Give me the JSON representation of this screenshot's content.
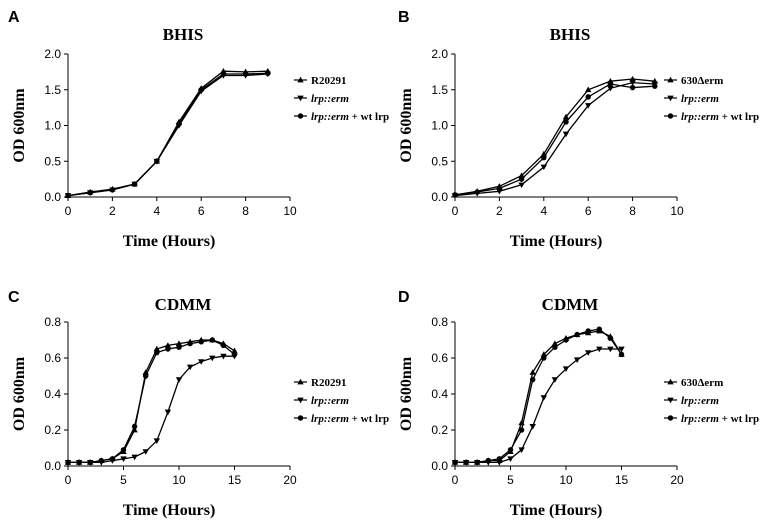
{
  "chart_data": [
    {
      "panel": "A",
      "type": "line",
      "title": "BHIS",
      "xlabel": "Time (Hours)",
      "ylabel": "OD 600nm",
      "xlim": [
        0,
        10
      ],
      "ylim": [
        0,
        2.0
      ],
      "xticks": [
        0,
        2,
        4,
        6,
        8,
        10
      ],
      "yticks": [
        0.0,
        0.5,
        1.0,
        1.5,
        2.0
      ],
      "ytick_labels": [
        "0.0",
        "0.5",
        "1.0",
        "1.5",
        "2.0"
      ],
      "legend_position": "right",
      "series": [
        {
          "name": "R20291",
          "name_italic": "",
          "suffix": "",
          "marker": "triangle-up",
          "x": [
            0,
            1,
            2,
            3,
            4,
            5,
            6,
            7,
            8,
            9
          ],
          "values": [
            0.02,
            0.07,
            0.11,
            0.18,
            0.5,
            1.05,
            1.52,
            1.76,
            1.75,
            1.76
          ]
        },
        {
          "name": "",
          "name_italic": "lrp::erm",
          "suffix": "",
          "marker": "triangle-down",
          "x": [
            0,
            1,
            2,
            3,
            4,
            5,
            6,
            7,
            8,
            9
          ],
          "values": [
            0.02,
            0.06,
            0.1,
            0.18,
            0.5,
            1.0,
            1.48,
            1.7,
            1.7,
            1.72
          ]
        },
        {
          "name": "",
          "name_italic": "lrp::erm",
          "suffix": " + wt lrp",
          "marker": "circle",
          "x": [
            0,
            1,
            2,
            3,
            4,
            5,
            6,
            7,
            8,
            9
          ],
          "values": [
            0.02,
            0.06,
            0.1,
            0.18,
            0.5,
            1.02,
            1.5,
            1.72,
            1.72,
            1.73
          ]
        }
      ]
    },
    {
      "panel": "B",
      "type": "line",
      "title": "BHIS",
      "xlabel": "Time (Hours)",
      "ylabel": "OD 600nm",
      "xlim": [
        0,
        10
      ],
      "ylim": [
        0,
        2.0
      ],
      "xticks": [
        0,
        2,
        4,
        6,
        8,
        10
      ],
      "yticks": [
        0.0,
        0.5,
        1.0,
        1.5,
        2.0
      ],
      "ytick_labels": [
        "0.0",
        "0.5",
        "1.0",
        "1.5",
        "2.0"
      ],
      "legend_position": "right",
      "series": [
        {
          "name": "630Δerm",
          "name_italic": "",
          "suffix": "",
          "marker": "triangle-up",
          "x": [
            0,
            1,
            2,
            3,
            4,
            5,
            6,
            7,
            8,
            9
          ],
          "values": [
            0.03,
            0.08,
            0.15,
            0.3,
            0.6,
            1.12,
            1.5,
            1.62,
            1.65,
            1.62
          ]
        },
        {
          "name": "",
          "name_italic": "lrp::erm",
          "suffix": "",
          "marker": "triangle-down",
          "x": [
            0,
            1,
            2,
            3,
            4,
            5,
            6,
            7,
            8,
            9
          ],
          "values": [
            0.02,
            0.05,
            0.08,
            0.17,
            0.42,
            0.88,
            1.28,
            1.52,
            1.6,
            1.58
          ]
        },
        {
          "name": "",
          "name_italic": "lrp::erm",
          "suffix": " + wt lrp",
          "marker": "circle",
          "x": [
            0,
            1,
            2,
            3,
            4,
            5,
            6,
            7,
            8,
            9
          ],
          "values": [
            0.03,
            0.07,
            0.12,
            0.25,
            0.55,
            1.05,
            1.4,
            1.58,
            1.53,
            1.55
          ]
        }
      ]
    },
    {
      "panel": "C",
      "type": "line",
      "title": "CDMM",
      "xlabel": "Time (Hours)",
      "ylabel": "OD 600nm",
      "xlim": [
        0,
        20
      ],
      "ylim": [
        0,
        0.8
      ],
      "xticks": [
        0,
        5,
        10,
        15,
        20
      ],
      "yticks": [
        0.0,
        0.2,
        0.4,
        0.6,
        0.8
      ],
      "ytick_labels": [
        "0.0",
        "0.2",
        "0.4",
        "0.6",
        "0.8"
      ],
      "legend_position": "right",
      "series": [
        {
          "name": "R20291",
          "name_italic": "",
          "suffix": "",
          "marker": "triangle-up",
          "x": [
            0,
            1,
            2,
            3,
            4,
            5,
            6,
            7,
            8,
            9,
            10,
            11,
            12,
            13,
            14,
            15
          ],
          "values": [
            0.02,
            0.02,
            0.02,
            0.03,
            0.04,
            0.08,
            0.2,
            0.52,
            0.65,
            0.67,
            0.68,
            0.69,
            0.7,
            0.7,
            0.68,
            0.64
          ]
        },
        {
          "name": "",
          "name_italic": "lrp::erm",
          "suffix": "",
          "marker": "triangle-down",
          "x": [
            0,
            1,
            2,
            3,
            4,
            5,
            6,
            7,
            8,
            9,
            10,
            11,
            12,
            13,
            14,
            15
          ],
          "values": [
            0.02,
            0.02,
            0.02,
            0.02,
            0.03,
            0.04,
            0.05,
            0.08,
            0.14,
            0.3,
            0.48,
            0.55,
            0.58,
            0.6,
            0.61,
            0.61
          ]
        },
        {
          "name": "",
          "name_italic": "lrp::erm",
          "suffix": " + wt lrp",
          "marker": "circle",
          "x": [
            0,
            1,
            2,
            3,
            4,
            5,
            6,
            7,
            8,
            9,
            10,
            11,
            12,
            13,
            14,
            15
          ],
          "values": [
            0.02,
            0.02,
            0.02,
            0.03,
            0.04,
            0.09,
            0.22,
            0.5,
            0.63,
            0.65,
            0.66,
            0.68,
            0.69,
            0.7,
            0.67,
            0.62
          ]
        }
      ]
    },
    {
      "panel": "D",
      "type": "line",
      "title": "CDMM",
      "xlabel": "Time (Hours)",
      "ylabel": "OD 600nm",
      "xlim": [
        0,
        20
      ],
      "ylim": [
        0,
        0.8
      ],
      "xticks": [
        0,
        5,
        10,
        15,
        20
      ],
      "yticks": [
        0.0,
        0.2,
        0.4,
        0.6,
        0.8
      ],
      "ytick_labels": [
        "0.0",
        "0.2",
        "0.4",
        "0.6",
        "0.8"
      ],
      "legend_position": "right",
      "series": [
        {
          "name": "630Δerm",
          "name_italic": "",
          "suffix": "",
          "marker": "triangle-up",
          "x": [
            0,
            1,
            2,
            3,
            4,
            5,
            6,
            7,
            8,
            9,
            10,
            11,
            12,
            13,
            14,
            15
          ],
          "values": [
            0.02,
            0.02,
            0.02,
            0.03,
            0.03,
            0.08,
            0.24,
            0.52,
            0.62,
            0.68,
            0.71,
            0.73,
            0.74,
            0.75,
            0.72,
            0.62
          ]
        },
        {
          "name": "",
          "name_italic": "lrp::erm",
          "suffix": "",
          "marker": "triangle-down",
          "x": [
            0,
            1,
            2,
            3,
            4,
            5,
            6,
            7,
            8,
            9,
            10,
            11,
            12,
            13,
            14,
            15
          ],
          "values": [
            0.02,
            0.02,
            0.02,
            0.02,
            0.02,
            0.04,
            0.09,
            0.22,
            0.38,
            0.48,
            0.54,
            0.59,
            0.63,
            0.65,
            0.65,
            0.65
          ]
        },
        {
          "name": "",
          "name_italic": "lrp::erm",
          "suffix": " + wt lrp",
          "marker": "circle",
          "x": [
            0,
            1,
            2,
            3,
            4,
            5,
            6,
            7,
            8,
            9,
            10,
            11,
            12,
            13,
            14,
            15
          ],
          "values": [
            0.02,
            0.02,
            0.02,
            0.03,
            0.04,
            0.09,
            0.2,
            0.48,
            0.6,
            0.66,
            0.7,
            0.73,
            0.75,
            0.76,
            0.71,
            0.62
          ]
        }
      ]
    }
  ]
}
